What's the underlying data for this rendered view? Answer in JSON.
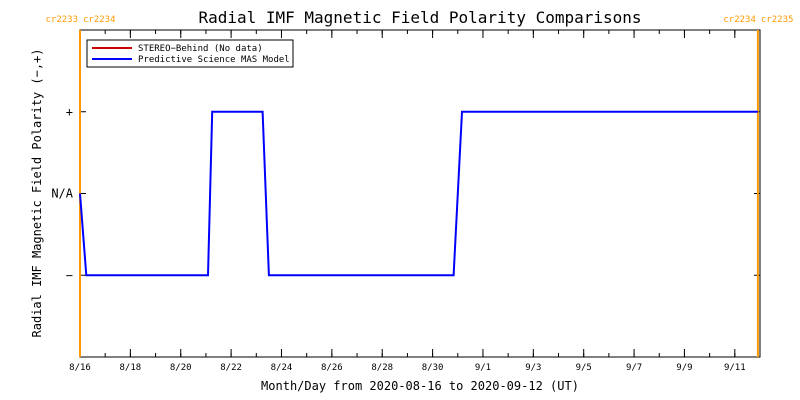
{
  "chart_data": {
    "type": "line",
    "title": "Radial IMF Magnetic Field Polarity Comparisons",
    "xlabel": "Month/Day from 2020-08-16 to 2020-09-12 (UT)",
    "ylabel": "Radial IMF Magnetic Field Polarity (−,+)",
    "x_start": "2020-08-16",
    "x_end": "2020-09-12",
    "y_levels": [
      "−",
      "N/A",
      "+"
    ],
    "y_tick_labels": [
      "−",
      "N/A",
      "+"
    ],
    "x_tick_labels": [
      "8/16",
      "8/18",
      "8/20",
      "8/22",
      "8/24",
      "8/26",
      "8/28",
      "8/30",
      "9/1",
      "9/3",
      "9/5",
      "9/7",
      "9/9",
      "9/11"
    ],
    "x_tick_dates": [
      "2020-08-16",
      "2020-08-18",
      "2020-08-20",
      "2020-08-22",
      "2020-08-24",
      "2020-08-26",
      "2020-08-28",
      "2020-08-30",
      "2020-09-01",
      "2020-09-03",
      "2020-09-05",
      "2020-09-07",
      "2020-09-09",
      "2020-09-11"
    ],
    "carrington_markers": [
      {
        "date": "2020-08-16 00:00",
        "left_label": "cr2233",
        "right_label": "cr2234"
      },
      {
        "date": "2020-09-11 22:00",
        "left_label": "cr2234",
        "right_label": "cr2235"
      }
    ],
    "marker_color": "#ff9900",
    "legend_position": "top-left",
    "series": [
      {
        "name": "STEREO−Behind (No data)",
        "color": "#cc0000",
        "points": []
      },
      {
        "name": "Predictive Science MAS Model",
        "color": "#0000ff",
        "points": [
          [
            "2020-08-16 00:00",
            "N/A"
          ],
          [
            "2020-08-16 06:00",
            "−"
          ],
          [
            "2020-08-21 02:00",
            "−"
          ],
          [
            "2020-08-21 06:00",
            "+"
          ],
          [
            "2020-08-23 06:00",
            "+"
          ],
          [
            "2020-08-23 12:00",
            "−"
          ],
          [
            "2020-08-30 20:00",
            "−"
          ],
          [
            "2020-08-31 04:00",
            "+"
          ],
          [
            "2020-09-11 22:00",
            "+"
          ]
        ]
      }
    ]
  }
}
